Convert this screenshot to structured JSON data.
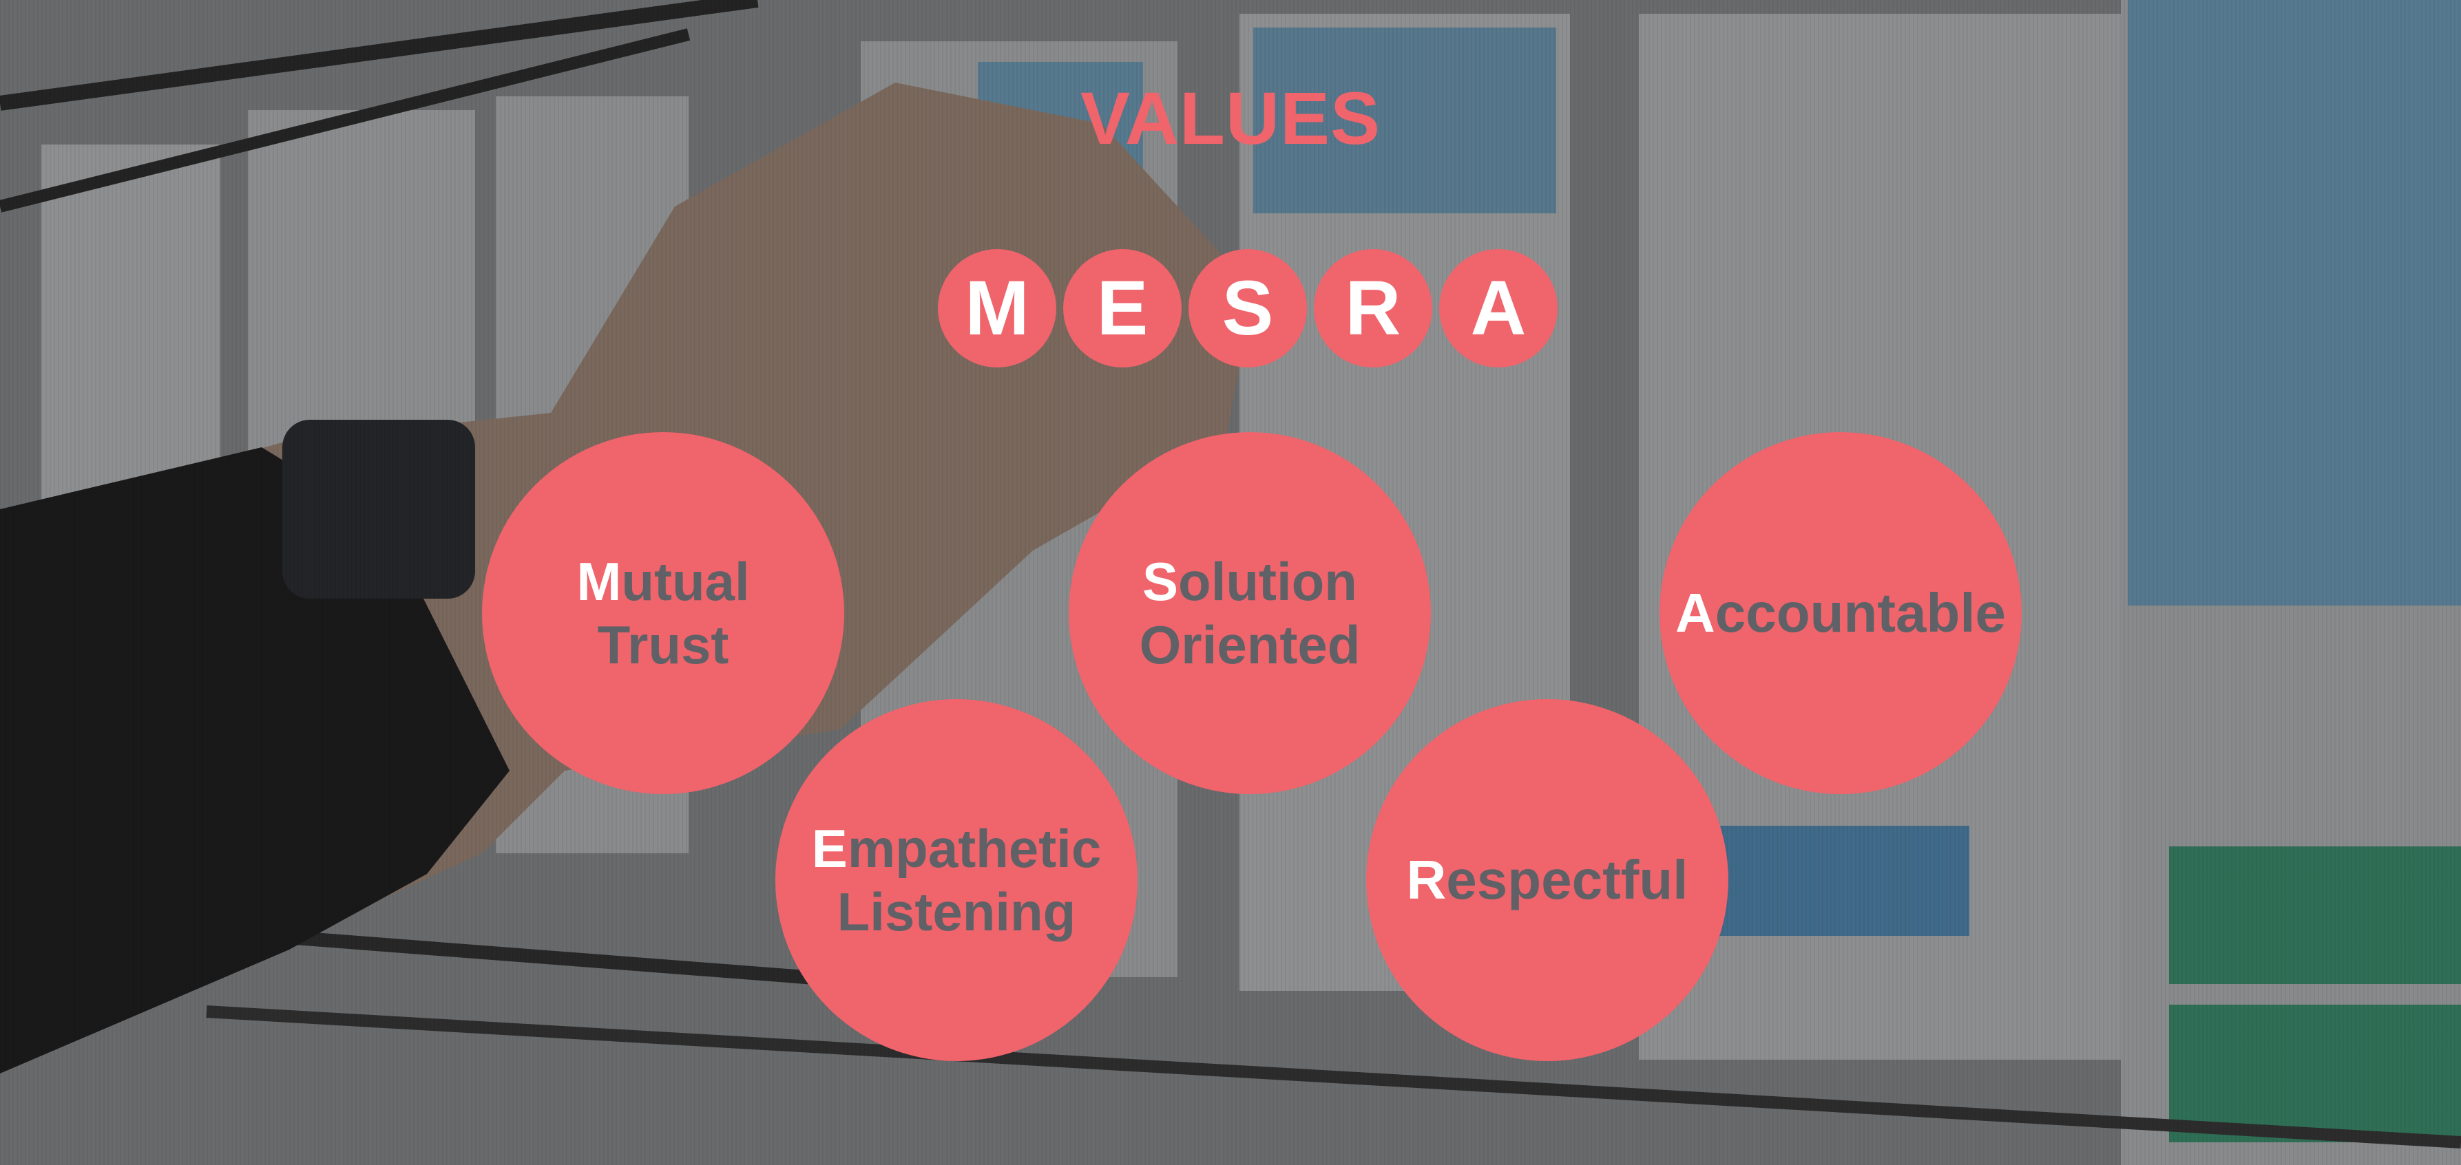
{
  "title": "VALUES",
  "acronym": [
    "M",
    "E",
    "S",
    "R",
    "A"
  ],
  "values": [
    {
      "initial": "M",
      "line1_rest": "utual",
      "line2": "Trust"
    },
    {
      "initial": "E",
      "line1_rest": "mpathetic",
      "line2": "Listening"
    },
    {
      "initial": "S",
      "line1_rest": "olution",
      "line2": "Oriented"
    },
    {
      "initial": "R",
      "line1_rest": "espectful"
    },
    {
      "initial": "A",
      "line1_rest": "ccountable"
    }
  ],
  "colors": {
    "accent": "#f0646c",
    "label_text": "#5f6166",
    "initial_text": "#ffffff"
  },
  "background": "photo of a hand placing a pin on a whiteboard with wireframe sketches"
}
